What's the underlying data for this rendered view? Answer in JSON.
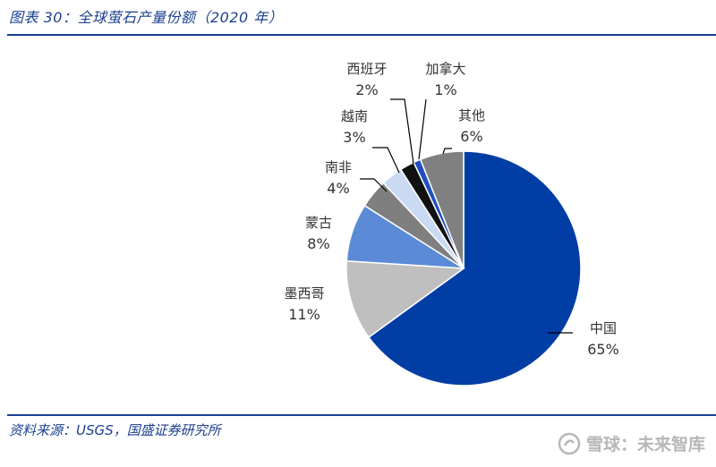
{
  "header": {
    "title": "图表 30：全球萤石产量份额（2020 年）"
  },
  "footer": {
    "source": "资料来源：USGS，国盛证券研究所",
    "watermark": "雪球：未来智库"
  },
  "colors": {
    "rule": "#1b3f8f",
    "text": "#333333"
  },
  "chart_data": {
    "type": "pie",
    "title": "",
    "slices": [
      {
        "label": "中国",
        "value": 65,
        "pct": "65%",
        "color": "#003da5"
      },
      {
        "label": "墨西哥",
        "value": 11,
        "pct": "11%",
        "color": "#bfbfbf"
      },
      {
        "label": "蒙古",
        "value": 8,
        "pct": "8%",
        "color": "#5b8bd6"
      },
      {
        "label": "南非",
        "value": 4,
        "pct": "4%",
        "color": "#7f7f7f"
      },
      {
        "label": "越南",
        "value": 3,
        "pct": "3%",
        "color": "#c9daf2"
      },
      {
        "label": "西班牙",
        "value": 2,
        "pct": "2%",
        "color": "#111111"
      },
      {
        "label": "加拿大",
        "value": 1,
        "pct": "1%",
        "color": "#1f4fbf"
      },
      {
        "label": "其他",
        "value": 6,
        "pct": "6%",
        "color": "#808080"
      }
    ]
  }
}
